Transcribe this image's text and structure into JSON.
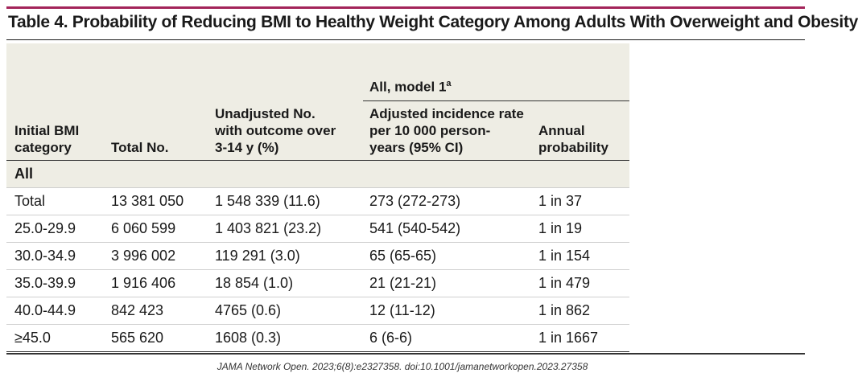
{
  "title": "Table 4. Probability of Reducing BMI to Healthy Weight Category Among Adults With Overweight and Obesity",
  "group_header": {
    "label": "All, model 1",
    "superscript": "a"
  },
  "columns": [
    {
      "lines": [
        "Initial BMI",
        "category"
      ]
    },
    {
      "lines": [
        "Total No."
      ]
    },
    {
      "lines": [
        "Unadjusted No.",
        "with outcome over",
        "3-14 y (%)"
      ]
    },
    {
      "lines": [
        "Adjusted incidence rate",
        "per 10 000 person-",
        "years (95% CI)"
      ]
    },
    {
      "lines": [
        "Annual",
        "probability"
      ]
    }
  ],
  "section_label": "All",
  "rows": [
    [
      "Total",
      "13 381 050",
      "1 548 339 (11.6)",
      "273 (272-273)",
      "1 in 37"
    ],
    [
      "25.0-29.9",
      "6 060 599",
      "1 403 821 (23.2)",
      "541 (540-542)",
      "1 in 19"
    ],
    [
      "30.0-34.9",
      "3 996 002",
      "119 291 (3.0)",
      "65 (65-65)",
      "1 in 154"
    ],
    [
      "35.0-39.9",
      "1 916 406",
      "18 854 (1.0)",
      "21 (21-21)",
      "1 in 479"
    ],
    [
      "40.0-44.9",
      "842 423",
      "4765 (0.6)",
      "12 (11-12)",
      "1 in 862"
    ],
    [
      "≥45.0",
      "565 620",
      "1608 (0.3)",
      "6 (6-6)",
      "1 in 1667"
    ]
  ],
  "citation": "JAMA Network Open. 2023;6(8):e2327358. doi:10.1001/jamanetworkopen.2023.27358"
}
